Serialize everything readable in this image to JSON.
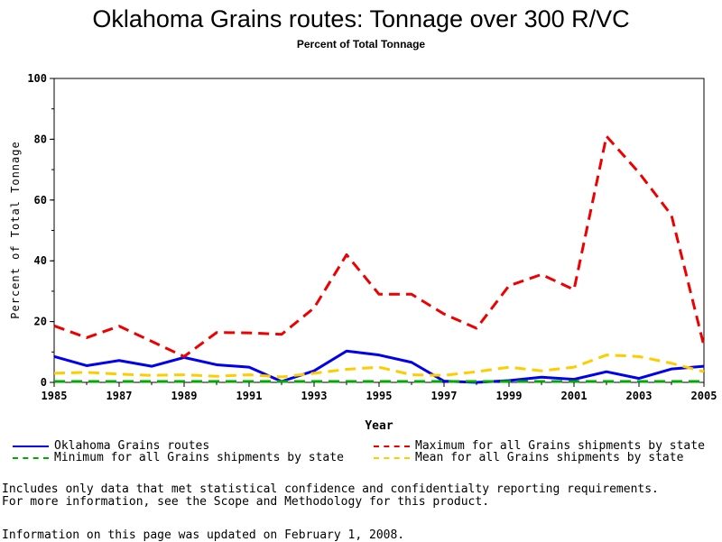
{
  "chart_data": {
    "type": "line",
    "title": "Oklahoma Grains routes: Tonnage over 300 R/VC",
    "subtitle": "Percent of Total Tonnage",
    "xlabel": "Year",
    "ylabel": "Percent of Total Tonnage",
    "xlim": [
      1985,
      2005
    ],
    "ylim": [
      0,
      100
    ],
    "x_ticks": [
      "1985",
      "1987",
      "1989",
      "1991",
      "1993",
      "1995",
      "1997",
      "1999",
      "2001",
      "2003",
      "2005"
    ],
    "y_ticks": [
      "0",
      "20",
      "40",
      "60",
      "80",
      "100"
    ],
    "grid": false,
    "x": [
      1985,
      1986,
      1987,
      1988,
      1989,
      1990,
      1991,
      1992,
      1993,
      1994,
      1995,
      1996,
      1997,
      1998,
      1999,
      2000,
      2001,
      2002,
      2003,
      2004,
      2005
    ],
    "series": [
      {
        "name": "Oklahoma Grains routes",
        "color": "#0000ee",
        "style": "solid",
        "values": [
          8.5,
          5.5,
          7.2,
          5.3,
          8.2,
          5.8,
          5.0,
          0.3,
          3.8,
          10.3,
          9.0,
          6.6,
          0.4,
          0,
          0.6,
          1.7,
          1.0,
          3.5,
          1.3,
          4.4,
          5.3
        ]
      },
      {
        "name": "Maximum for all Grains shipments by state",
        "color": "#ee0000",
        "style": "dashed",
        "values": [
          18.6,
          14.7,
          18.5,
          13.5,
          8.5,
          16.4,
          16.3,
          15.8,
          24.5,
          42.0,
          29.0,
          29.0,
          22.5,
          17.8,
          31.8,
          35.5,
          30.5,
          81.0,
          69.0,
          55.0,
          12.0
        ]
      },
      {
        "name": "Minimum for all Grains shipments by state",
        "color": "#00aa00",
        "style": "dashed",
        "values": [
          0.3,
          0.3,
          0.3,
          0.3,
          0.3,
          0.3,
          0.3,
          0.3,
          0.3,
          0.3,
          0.3,
          0.3,
          0.3,
          0.3,
          0.3,
          0.3,
          0.3,
          0.3,
          0.3,
          0.3,
          0.3
        ]
      },
      {
        "name": "Mean for all Grains shipments by state",
        "color": "#ffcc00",
        "style": "dashed",
        "values": [
          3.0,
          3.3,
          2.7,
          2.3,
          2.5,
          2.0,
          2.5,
          1.8,
          3.0,
          4.3,
          5.0,
          2.5,
          2.3,
          3.5,
          5.0,
          3.8,
          5.0,
          9.0,
          8.5,
          6.3,
          3.5
        ]
      }
    ]
  },
  "legend": {
    "items": [
      {
        "label": "Oklahoma Grains routes",
        "color": "#0000ee",
        "style": "solid"
      },
      {
        "label": "Maximum for all Grains shipments by state",
        "color": "#ee0000",
        "style": "dashed"
      },
      {
        "label": "Minimum for all Grains shipments by state",
        "color": "#00aa00",
        "style": "dashed"
      },
      {
        "label": "Mean for all Grains shipments by state",
        "color": "#ffcc00",
        "style": "dashed"
      }
    ]
  },
  "notes": {
    "line1": "Includes only data that met statistical confidence and confidentialty reporting requirements.",
    "line2": "For more information, see the Scope and Methodology for this product.",
    "updated": "Information on this page was updated on February 1, 2008."
  }
}
